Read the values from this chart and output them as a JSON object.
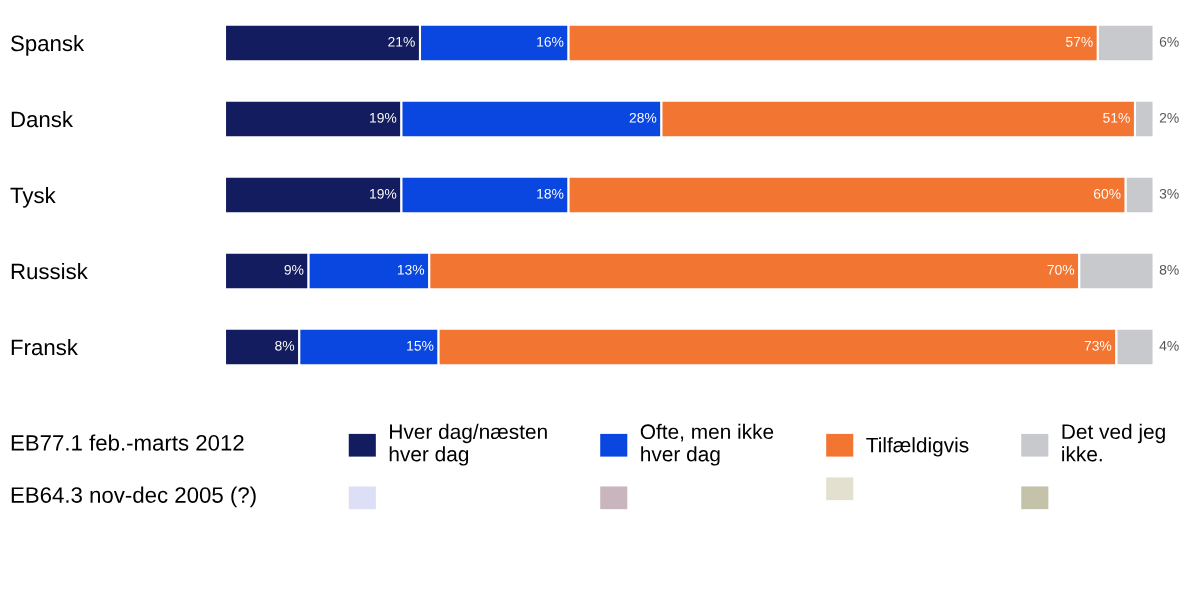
{
  "chart_data": {
    "type": "bar",
    "orientation": "horizontal",
    "stacked": true,
    "legend": "bottom",
    "categories": [
      "Spansk",
      "Dansk",
      "Tysk",
      "Russisk",
      "Fransk"
    ],
    "series": [
      {
        "name": "Hver dag/næsten\nhver dag",
        "color": "#131c5e",
        "values": [
          21,
          19,
          19,
          9,
          8
        ],
        "value_labels": [
          "21%",
          "19%",
          "19%",
          "9%",
          "8%"
        ]
      },
      {
        "name": "Ofte, men ikke\nhver dag",
        "color": "#0a47e0",
        "values": [
          16,
          28,
          18,
          13,
          15
        ],
        "value_labels": [
          "16%",
          "28%",
          "18%",
          "13%",
          "15%"
        ]
      },
      {
        "name": "Tilfældigvis",
        "color": "#f37532",
        "values": [
          57,
          51,
          60,
          70,
          73
        ],
        "value_labels": [
          "57%",
          "51%",
          "60%",
          "70%",
          "73%"
        ]
      },
      {
        "name": "Det ved jeg\nikke.",
        "color": "#c8c9cc",
        "values": [
          6,
          2,
          3,
          8,
          4
        ],
        "value_labels": [
          "6%",
          "2%",
          "3%",
          "8%",
          "4%"
        ]
      },
      {
        "color": "#dcdff5",
        "values": [
          null,
          null,
          null,
          null,
          null
        ]
      },
      {
        "color": "#c9b5bd",
        "values": [
          null,
          null,
          null,
          null,
          null
        ]
      },
      {
        "color": "#e3e0d0",
        "values": [
          null,
          null,
          null,
          null,
          null
        ]
      },
      {
        "color": "#c4c3aa",
        "values": [
          null,
          null,
          null,
          null,
          null
        ]
      }
    ],
    "annotations": [
      "EB77.1 feb.-marts 2012",
      "EB64.3 nov-dec 2005 (?)"
    ]
  }
}
